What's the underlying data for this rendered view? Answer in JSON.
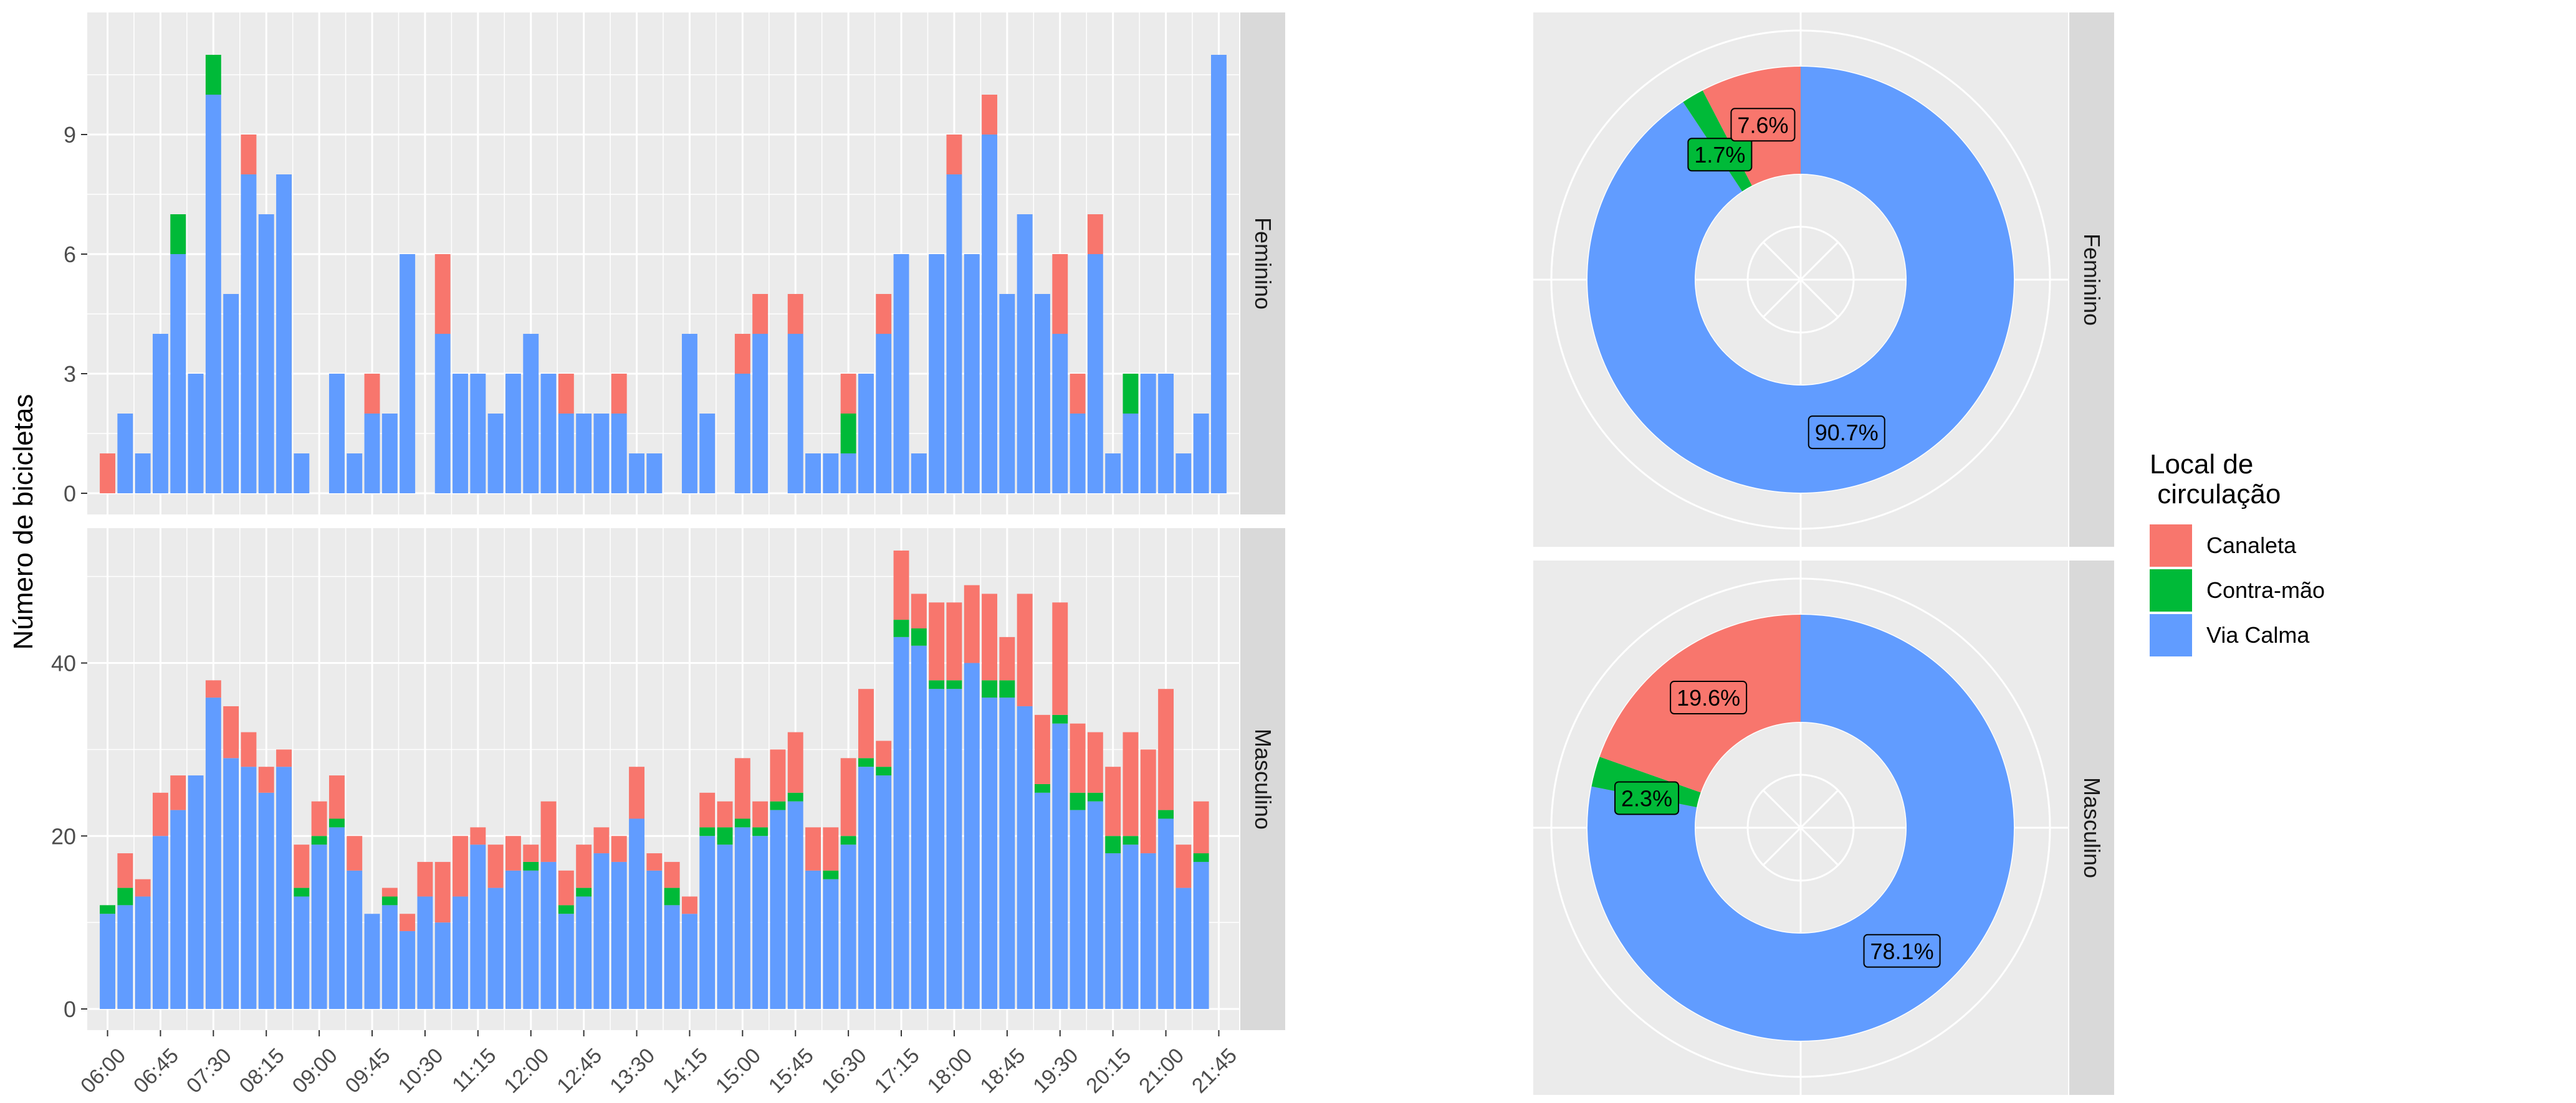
{
  "chart_data": [
    {
      "type": "bar",
      "stacked": true,
      "facet": "Feminino",
      "ylabel": "Número de bicicletas",
      "ylim": [
        0,
        11.5
      ],
      "yticks": [
        0,
        3,
        6,
        9
      ],
      "xtick_labels": [
        "06:00",
        "06:45",
        "07:30",
        "08:15",
        "09:00",
        "09:45",
        "10:30",
        "11:15",
        "12:00",
        "12:45",
        "13:30",
        "14:15",
        "15:00",
        "15:45",
        "16:30",
        "17:15",
        "18:00",
        "18:45",
        "19:30",
        "20:15",
        "21:00",
        "21:45"
      ],
      "series": [
        {
          "name": "Via Calma",
          "color": "#619CFF",
          "values": [
            0,
            2,
            1,
            4,
            6,
            3,
            10,
            5,
            8,
            7,
            8,
            1,
            null,
            3,
            1,
            2,
            2,
            6,
            null,
            4,
            3,
            3,
            2,
            3,
            4,
            3,
            2,
            2,
            2,
            2,
            1,
            1,
            null,
            4,
            2,
            null,
            3,
            4,
            null,
            4,
            1,
            1,
            1,
            3,
            4,
            6,
            1,
            6,
            8,
            6,
            9,
            5,
            7,
            5,
            4,
            2,
            6,
            1,
            2,
            3,
            3,
            1,
            2,
            11
          ]
        },
        {
          "name": "Contra-mão",
          "color": "#00BA38",
          "values": [
            0,
            0,
            0,
            0,
            1,
            0,
            1,
            0,
            0,
            0,
            0,
            0,
            null,
            0,
            0,
            0,
            0,
            0,
            null,
            0,
            0,
            0,
            0,
            0,
            0,
            0,
            0,
            0,
            0,
            0,
            0,
            0,
            null,
            0,
            0,
            null,
            0,
            0,
            null,
            0,
            0,
            0,
            1,
            0,
            0,
            0,
            0,
            0,
            0,
            0,
            0,
            0,
            0,
            0,
            0,
            0,
            0,
            0,
            1,
            0,
            0,
            0,
            0,
            0
          ]
        },
        {
          "name": "Canaleta",
          "color": "#F8766D",
          "values": [
            1,
            0,
            0,
            0,
            0,
            0,
            0,
            0,
            1,
            0,
            0,
            0,
            null,
            0,
            0,
            1,
            0,
            0,
            null,
            2,
            0,
            0,
            0,
            0,
            0,
            0,
            1,
            0,
            0,
            1,
            0,
            0,
            null,
            0,
            0,
            null,
            1,
            1,
            null,
            1,
            0,
            0,
            1,
            0,
            1,
            0,
            0,
            0,
            1,
            0,
            1,
            0,
            0,
            0,
            2,
            1,
            1,
            0,
            0,
            0,
            0,
            0,
            0,
            0
          ]
        }
      ]
    },
    {
      "type": "bar",
      "stacked": true,
      "facet": "Masculino",
      "ylabel": "Número de bicicletas",
      "ylim": [
        0,
        53
      ],
      "yticks": [
        0,
        20,
        40
      ],
      "xtick_labels": [
        "06:00",
        "06:45",
        "07:30",
        "08:15",
        "09:00",
        "09:45",
        "10:30",
        "11:15",
        "12:00",
        "12:45",
        "13:30",
        "14:15",
        "15:00",
        "15:45",
        "16:30",
        "17:15",
        "18:00",
        "18:45",
        "19:30",
        "20:15",
        "21:00",
        "21:45"
      ],
      "series": [
        {
          "name": "Via Calma",
          "color": "#619CFF",
          "values": [
            11,
            12,
            13,
            20,
            23,
            27,
            36,
            29,
            28,
            25,
            28,
            13,
            19,
            21,
            16,
            11,
            12,
            9,
            13,
            10,
            13,
            19,
            14,
            16,
            16,
            17,
            11,
            13,
            18,
            17,
            22,
            16,
            12,
            11,
            20,
            19,
            21,
            20,
            23,
            24,
            16,
            15,
            19,
            28,
            27,
            43,
            42,
            37,
            37,
            40,
            36,
            36,
            35,
            25,
            33,
            23,
            24,
            18,
            19,
            18,
            22,
            14,
            17
          ]
        },
        {
          "name": "Contra-mão",
          "color": "#00BA38",
          "values": [
            1,
            2,
            0,
            0,
            0,
            0,
            0,
            0,
            0,
            0,
            0,
            1,
            1,
            1,
            0,
            0,
            1,
            0,
            0,
            0,
            0,
            0,
            0,
            0,
            1,
            0,
            1,
            1,
            0,
            0,
            0,
            0,
            2,
            0,
            1,
            2,
            1,
            1,
            1,
            1,
            0,
            1,
            1,
            1,
            1,
            2,
            2,
            1,
            1,
            0,
            2,
            2,
            0,
            1,
            1,
            2,
            1,
            2,
            1,
            0,
            1,
            0,
            1
          ]
        },
        {
          "name": "Canaleta",
          "color": "#F8766D",
          "values": [
            0,
            4,
            2,
            5,
            4,
            0,
            2,
            6,
            4,
            3,
            2,
            5,
            4,
            5,
            4,
            0,
            1,
            2,
            4,
            7,
            7,
            2,
            5,
            4,
            2,
            7,
            4,
            5,
            3,
            3,
            6,
            2,
            3,
            2,
            4,
            3,
            7,
            3,
            6,
            7,
            5,
            5,
            9,
            8,
            3,
            8,
            4,
            9,
            9,
            9,
            10,
            5,
            13,
            8,
            13,
            8,
            7,
            8,
            12,
            12,
            14,
            5,
            6
          ]
        }
      ]
    },
    {
      "type": "pie",
      "donut": true,
      "facet": "Feminino",
      "slices": [
        {
          "label": "Canaleta",
          "value": 7.6,
          "text": "7.6%",
          "color": "#F8766D"
        },
        {
          "label": "Contra-mão",
          "value": 1.7,
          "text": "1.7%",
          "color": "#00BA38"
        },
        {
          "label": "Via Calma",
          "value": 90.7,
          "text": "90.7%",
          "color": "#619CFF"
        }
      ]
    },
    {
      "type": "pie",
      "donut": true,
      "facet": "Masculino",
      "slices": [
        {
          "label": "Canaleta",
          "value": 19.6,
          "text": "19.6%",
          "color": "#F8766D"
        },
        {
          "label": "Contra-mão",
          "value": 2.3,
          "text": "2.3%",
          "color": "#00BA38"
        },
        {
          "label": "Via Calma",
          "value": 78.1,
          "text": "78.1%",
          "color": "#619CFF"
        }
      ]
    }
  ],
  "legend": {
    "title_line1": "Local de",
    "title_line2": " circulação",
    "items": [
      {
        "label": "Canaleta",
        "color": "#F8766D"
      },
      {
        "label": "Contra-mão",
        "color": "#00BA38"
      },
      {
        "label": "Via Calma",
        "color": "#619CFF"
      }
    ]
  },
  "theme": {
    "panel_bg": "#EBEBEB",
    "strip_bg": "#D9D9D9",
    "grid": "#FFFFFF"
  }
}
